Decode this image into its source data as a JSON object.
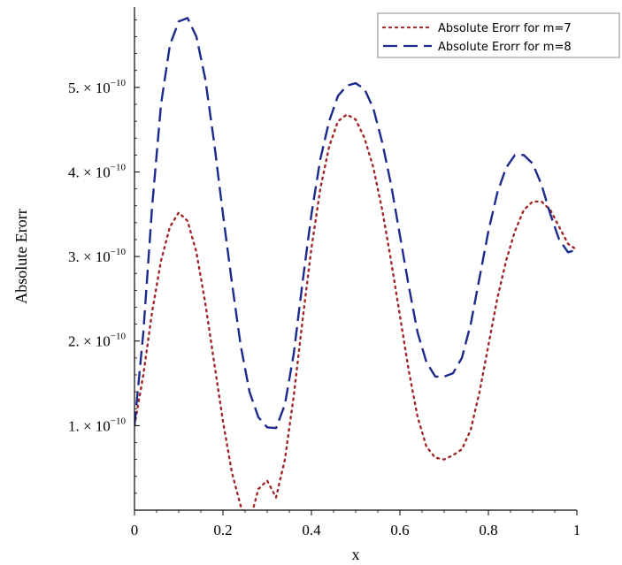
{
  "chart_data": {
    "type": "line",
    "title": "",
    "xlabel": "x",
    "ylabel": "Absolute Erorr",
    "xlim": [
      0,
      1
    ],
    "ylim": [
      0,
      5.95
    ],
    "y_exponent_note": "values in units of 1e-10",
    "x_ticks": [
      0,
      0.2,
      0.4,
      0.6,
      0.8,
      1
    ],
    "x_tick_labels": [
      "0",
      "0.2",
      "0.4",
      "0.6",
      "0.8",
      "1"
    ],
    "y_ticks": [
      1,
      2,
      3,
      4,
      5
    ],
    "y_tick_mantissas": [
      "1.",
      "2.",
      "3.",
      "4.",
      "5."
    ],
    "y_tick_base": "× 10",
    "y_tick_exponent": "−10",
    "grid": false,
    "legend_position": "top-right",
    "series": [
      {
        "name": "Absolute Erorr for m=7",
        "color": "#a02828",
        "style": "dotted",
        "x": [
          0,
          0.02,
          0.04,
          0.06,
          0.08,
          0.1,
          0.12,
          0.14,
          0.16,
          0.18,
          0.2,
          0.22,
          0.24,
          0.26,
          0.28,
          0.3,
          0.32,
          0.34,
          0.36,
          0.38,
          0.4,
          0.42,
          0.44,
          0.46,
          0.48,
          0.5,
          0.52,
          0.54,
          0.56,
          0.58,
          0.6,
          0.62,
          0.64,
          0.66,
          0.68,
          0.7,
          0.72,
          0.74,
          0.76,
          0.78,
          0.8,
          0.82,
          0.84,
          0.86,
          0.88,
          0.9,
          0.92,
          0.94,
          0.96,
          0.98,
          1.0
        ],
        "y": [
          1.0,
          1.6,
          2.35,
          2.95,
          3.35,
          3.52,
          3.42,
          3.05,
          2.45,
          1.75,
          1.05,
          0.45,
          0.05,
          -0.15,
          0.25,
          0.35,
          0.15,
          0.6,
          1.35,
          2.25,
          3.1,
          3.8,
          4.3,
          4.6,
          4.68,
          4.62,
          4.4,
          4.05,
          3.55,
          2.95,
          2.3,
          1.65,
          1.1,
          0.75,
          0.62,
          0.6,
          0.65,
          0.72,
          0.95,
          1.4,
          1.95,
          2.5,
          2.95,
          3.3,
          3.55,
          3.65,
          3.65,
          3.55,
          3.35,
          3.15,
          3.08
        ]
      },
      {
        "name": "Absolute Erorr for m=8",
        "color": "#1c2a8c",
        "style": "dashed",
        "x": [
          0,
          0.02,
          0.04,
          0.06,
          0.08,
          0.1,
          0.12,
          0.14,
          0.16,
          0.18,
          0.2,
          0.22,
          0.24,
          0.26,
          0.28,
          0.3,
          0.32,
          0.34,
          0.36,
          0.38,
          0.4,
          0.42,
          0.44,
          0.46,
          0.48,
          0.5,
          0.52,
          0.54,
          0.56,
          0.58,
          0.6,
          0.62,
          0.64,
          0.66,
          0.68,
          0.7,
          0.72,
          0.74,
          0.76,
          0.78,
          0.8,
          0.82,
          0.84,
          0.86,
          0.88,
          0.9,
          0.92,
          0.94,
          0.96,
          0.98,
          1.0
        ],
        "y": [
          1.0,
          2.1,
          3.6,
          4.8,
          5.5,
          5.78,
          5.82,
          5.6,
          5.1,
          4.35,
          3.5,
          2.7,
          1.95,
          1.4,
          1.1,
          0.98,
          0.97,
          1.25,
          1.85,
          2.7,
          3.5,
          4.15,
          4.6,
          4.9,
          5.02,
          5.05,
          4.98,
          4.75,
          4.35,
          3.85,
          3.25,
          2.65,
          2.1,
          1.75,
          1.58,
          1.58,
          1.62,
          1.8,
          2.2,
          2.75,
          3.3,
          3.75,
          4.05,
          4.2,
          4.2,
          4.1,
          3.85,
          3.5,
          3.2,
          3.05,
          3.08
        ]
      }
    ]
  }
}
